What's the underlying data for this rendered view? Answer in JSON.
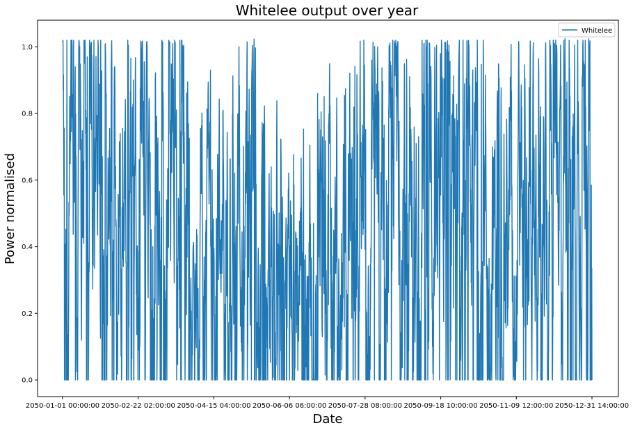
{
  "chart_data": {
    "type": "line",
    "title": "Whitelee output over year",
    "xlabel": "Date",
    "ylabel": "Power normalised",
    "xlim": [
      "2050-01-01 00:00:00",
      "2050-12-31 14:00:00"
    ],
    "ylim": [
      -0.05,
      1.08
    ],
    "x_ticks": [
      "2050-01-01 00:00:00",
      "2050-02-22 02:00:00",
      "2050-04-15 04:00:00",
      "2050-06-06 06:00:00",
      "2050-07-28 08:00:00",
      "2050-09-18 10:00:00",
      "2050-11-09 12:00:00",
      "2050-12-31 14:00:00"
    ],
    "y_ticks": [
      "0.0",
      "0.2",
      "0.4",
      "0.6",
      "0.8",
      "1.0"
    ],
    "y_tick_values": [
      0.0,
      0.2,
      0.4,
      0.6,
      0.8,
      1.0
    ],
    "grid": false,
    "legend": {
      "position": "upper right",
      "entries": [
        "Whitelee"
      ]
    },
    "series": [
      {
        "name": "Whitelee",
        "color": "#1f77b4"
      }
    ]
  }
}
